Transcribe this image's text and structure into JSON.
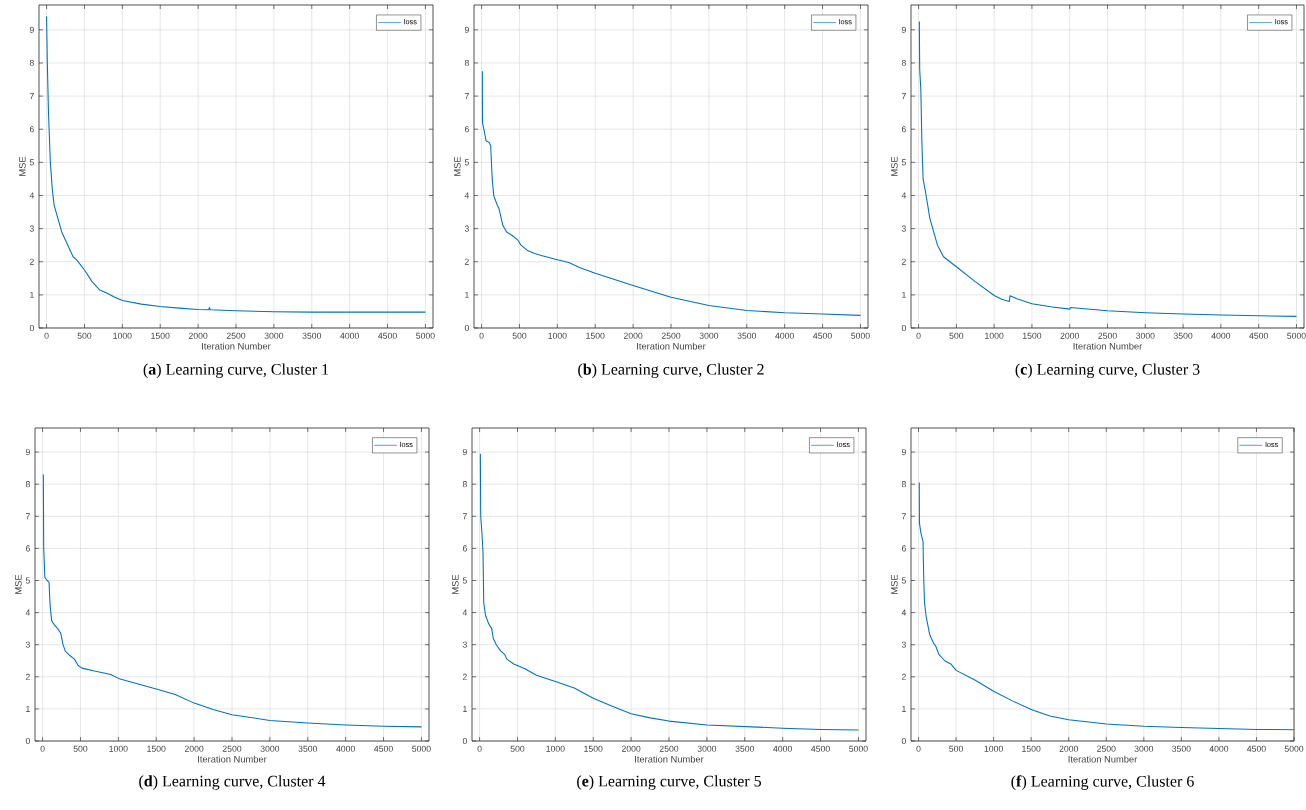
{
  "chart_data": [
    {
      "type": "line",
      "title": "(**a**) Learning curve, Cluster 1",
      "xlabel": "Iteration Number",
      "ylabel": "MSE",
      "xlim": [
        -100,
        5100
      ],
      "ylim": [
        0,
        9.75
      ],
      "xticks": [
        0,
        500,
        1000,
        1500,
        2000,
        2500,
        3000,
        3500,
        4000,
        4500,
        5000
      ],
      "yticks": [
        0,
        1,
        2,
        3,
        4,
        5,
        6,
        7,
        8,
        9
      ],
      "grid": true,
      "legend": "top right",
      "series": [
        {
          "name": "loss",
          "color": "#0072bd",
          "x": [
            0,
            10,
            25,
            50,
            75,
            100,
            150,
            200,
            300,
            350,
            400,
            500,
            600,
            700,
            750,
            800,
            900,
            1000,
            1250,
            1500,
            1750,
            2000,
            2140,
            2150,
            2160,
            2500,
            3000,
            3500,
            4000,
            5000
          ],
          "values": [
            9.4,
            8.0,
            6.5,
            5.0,
            4.2,
            3.7,
            3.3,
            2.9,
            2.4,
            2.15,
            2.05,
            1.75,
            1.4,
            1.15,
            1.1,
            1.05,
            0.93,
            0.83,
            0.72,
            0.65,
            0.6,
            0.56,
            0.55,
            0.62,
            0.55,
            0.52,
            0.49,
            0.48,
            0.48,
            0.48
          ]
        }
      ]
    },
    {
      "type": "line",
      "title": "(**b**) Learning curve, Cluster 2",
      "xlabel": "Iteration Number",
      "ylabel": "MSE",
      "xlim": [
        -100,
        5100
      ],
      "ylim": [
        0,
        9.75
      ],
      "xticks": [
        0,
        500,
        1000,
        1500,
        2000,
        2500,
        3000,
        3500,
        4000,
        4500,
        5000
      ],
      "yticks": [
        0,
        1,
        2,
        3,
        4,
        5,
        6,
        7,
        8,
        9
      ],
      "grid": true,
      "legend": "top right",
      "series": [
        {
          "name": "loss",
          "color": "#0072bd",
          "x": [
            10,
            12,
            30,
            60,
            100,
            120,
            140,
            160,
            200,
            230,
            250,
            280,
            330,
            400,
            480,
            520,
            600,
            700,
            800,
            1000,
            1150,
            1300,
            1500,
            2000,
            2500,
            3000,
            3500,
            4000,
            4500,
            5000
          ],
          "values": [
            7.75,
            6.2,
            6.0,
            5.65,
            5.6,
            5.5,
            4.5,
            4.0,
            3.75,
            3.6,
            3.4,
            3.1,
            2.9,
            2.8,
            2.65,
            2.5,
            2.35,
            2.25,
            2.18,
            2.06,
            1.98,
            1.82,
            1.65,
            1.28,
            0.93,
            0.68,
            0.53,
            0.46,
            0.42,
            0.38
          ]
        }
      ]
    },
    {
      "type": "line",
      "title": "(**c**) Learning curve, Cluster 3",
      "xlabel": "Iteration Number",
      "ylabel": "MSE",
      "xlim": [
        -100,
        5100
      ],
      "ylim": [
        0,
        9.75
      ],
      "xticks": [
        0,
        500,
        1000,
        1500,
        2000,
        2500,
        3000,
        3500,
        4000,
        4500,
        5000
      ],
      "yticks": [
        0,
        1,
        2,
        3,
        4,
        5,
        6,
        7,
        8,
        9
      ],
      "grid": true,
      "legend": "top right",
      "series": [
        {
          "name": "loss",
          "color": "#0072bd",
          "x": [
            10,
            15,
            30,
            45,
            60,
            100,
            150,
            200,
            250,
            330,
            500,
            750,
            1000,
            1100,
            1200,
            1210,
            1300,
            1500,
            1750,
            2000,
            2010,
            2500,
            3000,
            3500,
            4000,
            4500,
            5000
          ],
          "values": [
            9.25,
            7.8,
            7.2,
            5.5,
            4.5,
            4.0,
            3.3,
            2.9,
            2.5,
            2.15,
            1.85,
            1.4,
            0.98,
            0.87,
            0.8,
            0.97,
            0.88,
            0.73,
            0.64,
            0.57,
            0.62,
            0.52,
            0.46,
            0.42,
            0.39,
            0.37,
            0.35
          ]
        }
      ]
    },
    {
      "type": "line",
      "title": "(**d**) Learning curve, Cluster 4",
      "xlabel": "Iteration Number",
      "ylabel": "MSE",
      "xlim": [
        -100,
        5100
      ],
      "ylim": [
        0,
        9.75
      ],
      "xticks": [
        0,
        500,
        1000,
        1500,
        2000,
        2500,
        3000,
        3500,
        4000,
        4500,
        5000
      ],
      "yticks": [
        0,
        1,
        2,
        3,
        4,
        5,
        6,
        7,
        8,
        9
      ],
      "grid": true,
      "legend": "top right",
      "series": [
        {
          "name": "loss",
          "color": "#0072bd",
          "x": [
            10,
            15,
            30,
            60,
            85,
            100,
            120,
            160,
            200,
            240,
            270,
            300,
            350,
            420,
            470,
            520,
            700,
            900,
            1000,
            1500,
            1750,
            2000,
            2250,
            2500,
            3000,
            3500,
            4000,
            4500,
            5000
          ],
          "values": [
            8.3,
            6.0,
            5.1,
            5.0,
            4.95,
            4.2,
            3.75,
            3.6,
            3.5,
            3.35,
            3.0,
            2.8,
            2.68,
            2.55,
            2.35,
            2.27,
            2.17,
            2.07,
            1.95,
            1.62,
            1.45,
            1.18,
            0.98,
            0.82,
            0.64,
            0.56,
            0.5,
            0.46,
            0.44
          ]
        }
      ]
    },
    {
      "type": "line",
      "title": "(**e**) Learning curve, Cluster 5",
      "xlabel": "Iteration Number",
      "ylabel": "MSE",
      "xlim": [
        -100,
        5100
      ],
      "ylim": [
        0,
        9.75
      ],
      "xticks": [
        0,
        500,
        1000,
        1500,
        2000,
        2500,
        3000,
        3500,
        4000,
        4500,
        5000
      ],
      "yticks": [
        0,
        1,
        2,
        3,
        4,
        5,
        6,
        7,
        8,
        9
      ],
      "grid": true,
      "legend": "top right",
      "series": [
        {
          "name": "loss",
          "color": "#0072bd",
          "x": [
            10,
            15,
            30,
            45,
            55,
            80,
            120,
            160,
            180,
            220,
            280,
            330,
            360,
            450,
            600,
            750,
            1000,
            1250,
            1500,
            1750,
            2000,
            2250,
            2500,
            3000,
            3500,
            4000,
            4500,
            5000
          ],
          "values": [
            8.95,
            7.0,
            6.5,
            5.9,
            4.3,
            3.9,
            3.65,
            3.5,
            3.2,
            3.0,
            2.8,
            2.7,
            2.55,
            2.4,
            2.25,
            2.05,
            1.85,
            1.65,
            1.33,
            1.08,
            0.85,
            0.72,
            0.62,
            0.5,
            0.45,
            0.4,
            0.36,
            0.34
          ]
        }
      ]
    },
    {
      "type": "line",
      "title": "(**f**) Learning curve, Cluster 6",
      "xlabel": "Iteration Number",
      "ylabel": "MSE",
      "xlim": [
        -100,
        5000
      ],
      "ylim": [
        0,
        9.75
      ],
      "xticks": [
        0,
        500,
        1000,
        1500,
        2000,
        2500,
        3000,
        3500,
        4000,
        4500,
        5000
      ],
      "yticks": [
        0,
        1,
        2,
        3,
        4,
        5,
        6,
        7,
        8,
        9
      ],
      "grid": true,
      "legend": "top right",
      "series": [
        {
          "name": "loss",
          "color": "#0072bd",
          "x": [
            10,
            12,
            30,
            55,
            60,
            70,
            80,
            100,
            150,
            200,
            230,
            270,
            350,
            430,
            500,
            750,
            1000,
            1250,
            1500,
            1750,
            2000,
            2500,
            3000,
            3500,
            4000,
            4500,
            5000
          ],
          "values": [
            8.05,
            6.8,
            6.5,
            6.25,
            6.2,
            5.0,
            4.3,
            3.9,
            3.3,
            3.05,
            2.95,
            2.7,
            2.5,
            2.4,
            2.2,
            1.9,
            1.55,
            1.25,
            0.98,
            0.78,
            0.66,
            0.53,
            0.46,
            0.42,
            0.39,
            0.36,
            0.35
          ]
        }
      ]
    }
  ]
}
